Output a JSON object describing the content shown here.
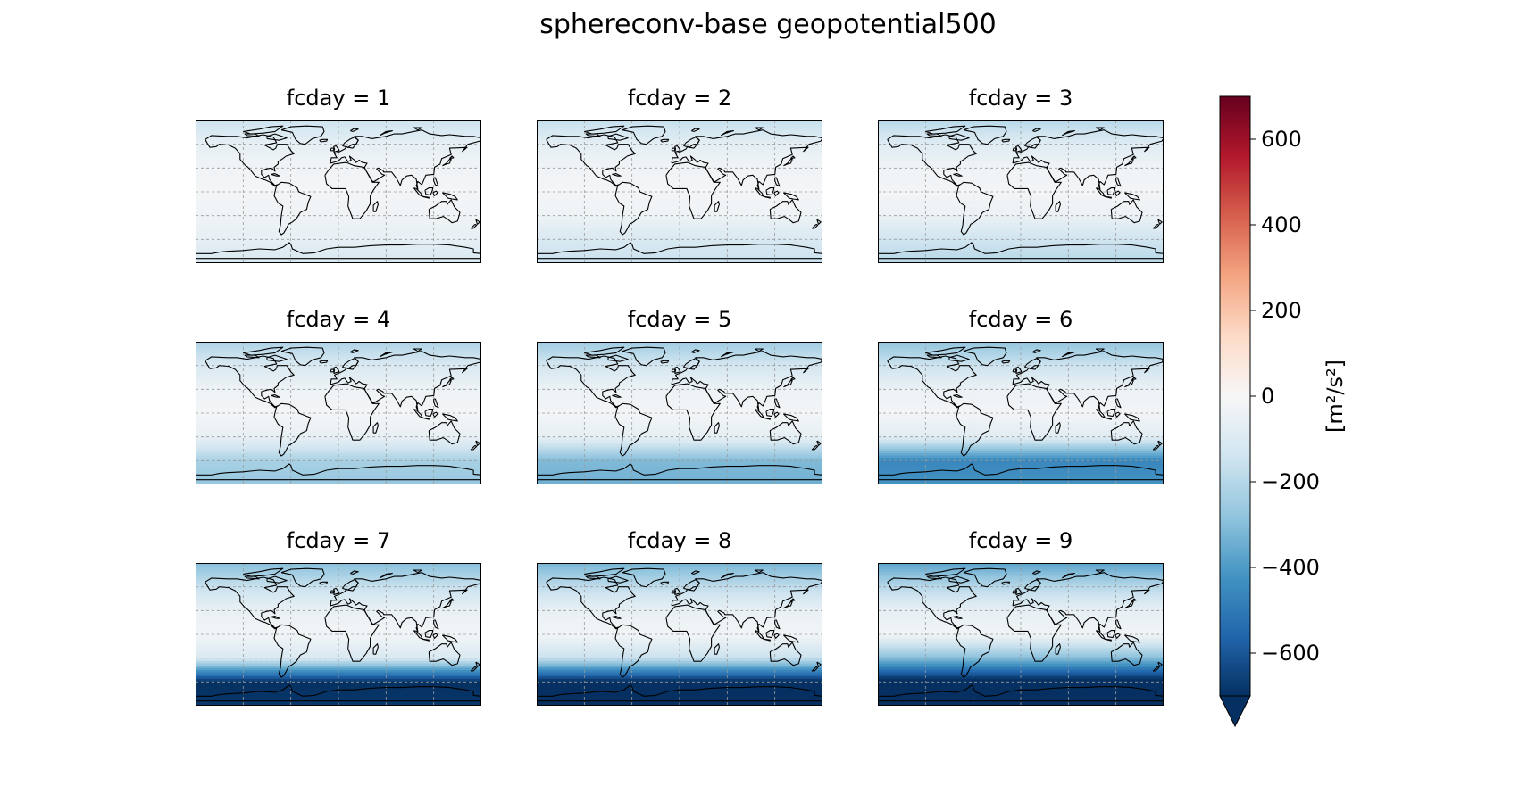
{
  "figure": {
    "title": "sphereconv-base geopotential500"
  },
  "colormap": {
    "name": "RdBu_r",
    "stops": [
      "#053061",
      "#2166ac",
      "#4393c3",
      "#92c5de",
      "#d1e5f0",
      "#f7f7f7",
      "#fddbc7",
      "#f4a582",
      "#d6604d",
      "#b2182b",
      "#67001f"
    ],
    "vmin": -700,
    "vmax": 700,
    "extend": "min"
  },
  "chart_data": {
    "type": "heatmap",
    "title": "sphereconv-base geopotential500",
    "colorbar": {
      "label": "[m²/s²]",
      "ticks": [
        600,
        400,
        200,
        0,
        -200,
        -400,
        -600
      ],
      "tick_labels": [
        "600",
        "400",
        "200",
        "0",
        "−200",
        "−400",
        "−600"
      ],
      "range": [
        -700,
        700
      ]
    },
    "grid": true,
    "panels": [
      {
        "label": "fcday = 1",
        "fcday": 1,
        "approx_values_by_lat_band": {
          "90N": -150,
          "60N": -60,
          "30N": -25,
          "EQ": -15,
          "30S": -30,
          "60S": -60,
          "90S": -120
        }
      },
      {
        "label": "fcday = 2",
        "fcday": 2,
        "approx_values_by_lat_band": {
          "90N": -170,
          "60N": -70,
          "30N": -25,
          "EQ": -15,
          "30S": -35,
          "60S": -110,
          "90S": -160
        }
      },
      {
        "label": "fcday = 3",
        "fcday": 3,
        "approx_values_by_lat_band": {
          "90N": -200,
          "60N": -90,
          "30N": -30,
          "EQ": -15,
          "30S": -45,
          "60S": -140,
          "90S": -200
        }
      },
      {
        "label": "fcday = 4",
        "fcday": 4,
        "approx_values_by_lat_band": {
          "90N": -220,
          "60N": -110,
          "30N": -35,
          "EQ": -15,
          "30S": -55,
          "60S": -230,
          "90S": -270
        }
      },
      {
        "label": "fcday = 5",
        "fcday": 5,
        "approx_values_by_lat_band": {
          "90N": -250,
          "60N": -130,
          "30N": -40,
          "EQ": -15,
          "30S": -65,
          "60S": -310,
          "90S": -340
        }
      },
      {
        "label": "fcday = 6",
        "fcday": 6,
        "approx_values_by_lat_band": {
          "90N": -280,
          "60N": -150,
          "30N": -45,
          "EQ": -15,
          "30S": -80,
          "60S": -460,
          "90S": -420
        }
      },
      {
        "label": "fcday = 7",
        "fcday": 7,
        "approx_values_by_lat_band": {
          "90N": -300,
          "60N": -160,
          "30N": -50,
          "EQ": -20,
          "30S": -110,
          "60S": -700,
          "90S": -680
        }
      },
      {
        "label": "fcday = 8",
        "fcday": 8,
        "approx_values_by_lat_band": {
          "90N": -330,
          "60N": -180,
          "30N": -55,
          "EQ": -20,
          "30S": -160,
          "60S": -720,
          "90S": -700
        }
      },
      {
        "label": "fcday = 9",
        "fcday": 9,
        "approx_values_by_lat_band": {
          "90N": -380,
          "60N": -200,
          "30N": -60,
          "EQ": -25,
          "30S": -300,
          "60S": -750,
          "90S": -720
        }
      }
    ]
  }
}
